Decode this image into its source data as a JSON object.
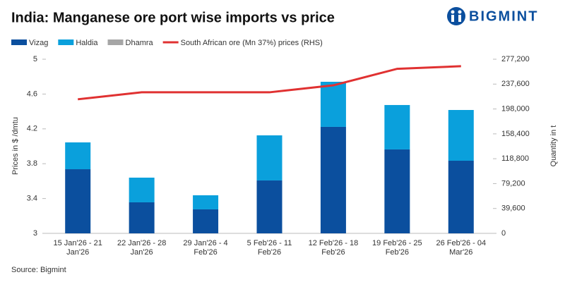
{
  "chart_data": {
    "type": "bar",
    "title": "India: Manganese ore port wise imports vs price",
    "logo": "BIGMINT",
    "source": "Source: Bigmint",
    "y_label": "Prices in $ /dmtu",
    "y2_label": "Quantity in t",
    "categories": [
      "15 Jan'26 - 21 Jan'26",
      "22 Jan'26 - 28 Jan'26",
      "29 Jan'26 - 4 Feb'26",
      "5 Feb'26 - 11 Feb'26",
      "12 Feb'26 - 18 Feb'26",
      "19 Feb'26 - 25 Feb'26",
      "26 Feb'26 - 04 Mar'26"
    ],
    "series": [
      {
        "name": "Vizag",
        "color": "#0b4f9e",
        "type": "bar",
        "axis": "y2",
        "values": [
          102100,
          49400,
          38200,
          84200,
          169500,
          133600,
          115600
        ]
      },
      {
        "name": "Haldia",
        "color": "#0aa0dc",
        "type": "bar",
        "axis": "y2",
        "values": [
          42700,
          39300,
          22400,
          71800,
          71800,
          70700,
          80800
        ]
      },
      {
        "name": "Dhamra",
        "color": "#a6a6a6",
        "type": "bar",
        "axis": "y2",
        "values": [
          0,
          0,
          0,
          0,
          0,
          0,
          0
        ]
      },
      {
        "name": "South African ore (Mn 37%) prices (RHS)",
        "color": "#e03131",
        "type": "line",
        "values": [
          4.54,
          4.62,
          4.62,
          4.62,
          4.7,
          4.89,
          4.92
        ]
      }
    ],
    "ylim": [
      3,
      5
    ],
    "yticks": [
      3,
      3.4,
      3.8,
      4.2,
      4.6,
      5
    ],
    "y2lim": [
      0,
      277200
    ],
    "y2ticks": [
      0,
      {
        "value": 39600,
        "label": "39,600"
      },
      {
        "value": 79200,
        "label": "79,200"
      },
      {
        "value": 118800,
        "label": "118,800"
      },
      {
        "value": 158400,
        "label": "158,400"
      },
      {
        "value": 198000,
        "label": "198,000"
      },
      {
        "value": 237600,
        "label": "237,600"
      },
      {
        "value": 277200,
        "label": "277,200"
      }
    ]
  }
}
